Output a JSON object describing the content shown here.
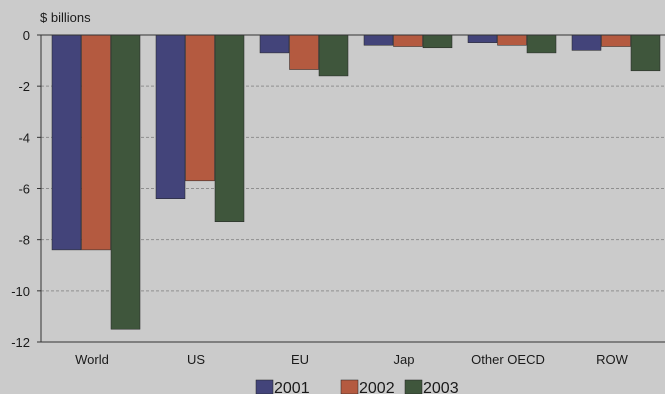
{
  "chart_data": {
    "type": "bar",
    "title": "",
    "unit_label": "$ billions",
    "xlabel": "",
    "ylabel": "",
    "categories": [
      "World",
      "US",
      "EU",
      "Jap",
      "Other OECD",
      "ROW"
    ],
    "series": [
      {
        "name": "2001",
        "color": "#43447a",
        "values": [
          -8.4,
          -6.4,
          -0.7,
          -0.4,
          -0.3,
          -0.6
        ]
      },
      {
        "name": "2002",
        "color": "#b45a40",
        "values": [
          -8.4,
          -5.7,
          -1.35,
          -0.45,
          -0.4,
          -0.45
        ]
      },
      {
        "name": "2003",
        "color": "#3f563c",
        "values": [
          -11.5,
          -7.3,
          -1.6,
          -0.5,
          -0.7,
          -1.4
        ]
      }
    ],
    "ylim": [
      -12,
      0
    ],
    "yticks": [
      0,
      -2,
      -4,
      -6,
      -8,
      -10,
      -12
    ],
    "grid": true,
    "legend_position": "bottom"
  }
}
